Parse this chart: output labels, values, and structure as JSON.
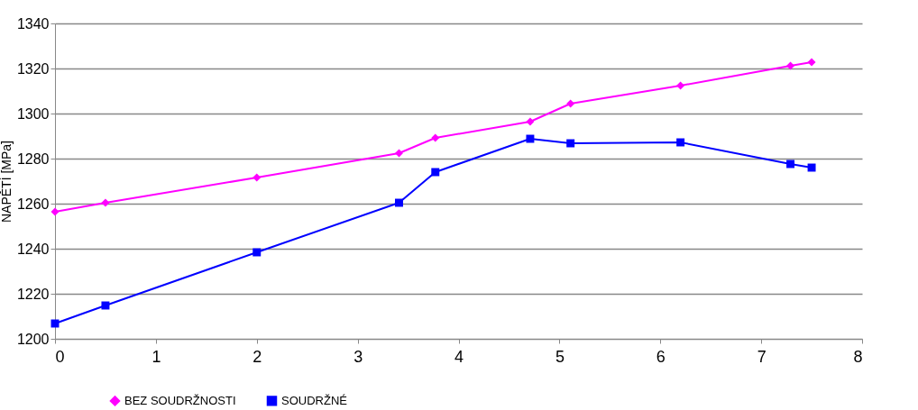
{
  "chart_data": {
    "type": "line",
    "ylabel": "NAPĚTÍ [MPa]",
    "xlim": [
      0,
      8
    ],
    "xticks": [
      0,
      1,
      2,
      3,
      4,
      5,
      6,
      7,
      8
    ],
    "ylim": [
      1200,
      1340
    ],
    "yticks": [
      1200,
      1220,
      1240,
      1260,
      1280,
      1300,
      1320,
      1340
    ],
    "grid": "y",
    "legend": "bottom left",
    "series": [
      {
        "name": "BEZ SOUDRŽNOSTI",
        "color": "#ff00ff",
        "marker": "diamond",
        "x": [
          0,
          0.5,
          2.0,
          3.41,
          3.77,
          4.71,
          5.11,
          6.2,
          7.29,
          7.5
        ],
        "values": [
          1256.4,
          1260.4,
          1271.6,
          1282.4,
          1289.2,
          1296.4,
          1304.4,
          1312.4,
          1321.2,
          1322.8
        ]
      },
      {
        "name": "SOUDRŽNÉ",
        "color": "#0000ff",
        "marker": "square",
        "x": [
          0,
          0.5,
          2.0,
          3.41,
          3.77,
          4.71,
          5.11,
          6.2,
          7.29,
          7.5
        ],
        "values": [
          1206.8,
          1214.8,
          1238.4,
          1260.4,
          1274,
          1288.8,
          1286.8,
          1287.2,
          1277.6,
          1276
        ]
      }
    ]
  }
}
